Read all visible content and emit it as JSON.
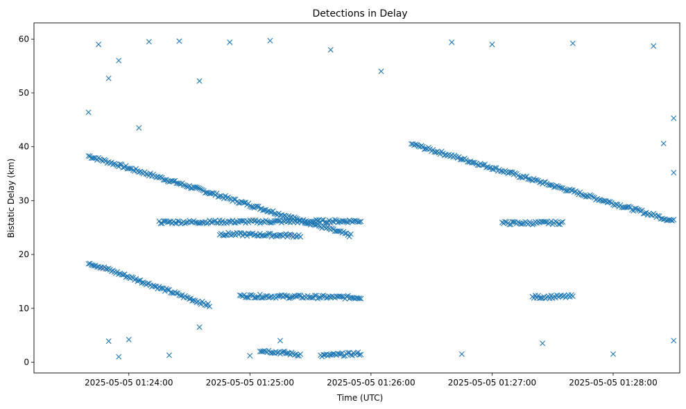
{
  "chart_data": {
    "type": "scatter",
    "title": "Detections in Delay",
    "xlabel": "Time (UTC)",
    "ylabel": "Bistatic Delay (km)",
    "marker": "x",
    "color": "#1f77b4",
    "x_unit": "time (UTC)",
    "xlim": [
      "2025-05-05 01:23:13",
      "2025-05-05 01:28:33"
    ],
    "ylim": [
      -2,
      63
    ],
    "xticks": [
      "2025-05-05 01:24:00",
      "2025-05-05 01:25:00",
      "2025-05-05 01:26:00",
      "2025-05-05 01:27:00",
      "2025-05-05 01:28:00"
    ],
    "yticks": [
      0,
      10,
      20,
      30,
      40,
      50,
      60
    ],
    "grid": false,
    "tracks": [
      {
        "from": [
          "2025-05-05 01:23:40",
          38.3
        ],
        "to": [
          "2025-05-05 01:25:50",
          23.5
        ]
      },
      {
        "from": [
          "2025-05-05 01:26:20",
          40.5
        ],
        "to": [
          "2025-05-05 01:28:30",
          26.2
        ]
      },
      {
        "from": [
          "2025-05-05 01:23:40",
          18.5
        ],
        "to": [
          "2025-05-05 01:24:40",
          10.5
        ]
      },
      {
        "from": [
          "2025-05-05 01:24:55",
          12.3
        ],
        "to": [
          "2025-05-05 01:25:55",
          12.0
        ]
      },
      {
        "from": [
          "2025-05-05 01:25:05",
          2.2
        ],
        "to": [
          "2025-05-05 01:25:25",
          1.4
        ]
      },
      {
        "from": [
          "2025-05-05 01:25:35",
          1.2
        ],
        "to": [
          "2025-05-05 01:25:55",
          1.6
        ]
      },
      {
        "from": [
          "2025-05-05 01:24:15",
          26.0
        ],
        "to": [
          "2025-05-05 01:25:55",
          26.2
        ]
      },
      {
        "from": [
          "2025-05-05 01:24:45",
          23.8
        ],
        "to": [
          "2025-05-05 01:25:25",
          23.5
        ]
      },
      {
        "from": [
          "2025-05-05 01:27:05",
          25.8
        ],
        "to": [
          "2025-05-05 01:27:35",
          25.9
        ]
      },
      {
        "from": [
          "2025-05-05 01:27:20",
          12.1
        ],
        "to": [
          "2025-05-05 01:27:40",
          12.2
        ]
      }
    ],
    "sample_points": [
      [
        "2025-05-05 01:23:40",
        46.4
      ],
      [
        "2025-05-05 01:23:45",
        59.0
      ],
      [
        "2025-05-05 01:23:50",
        52.7
      ],
      [
        "2025-05-05 01:23:55",
        56.0
      ],
      [
        "2025-05-05 01:24:05",
        43.5
      ],
      [
        "2025-05-05 01:24:10",
        59.5
      ],
      [
        "2025-05-05 01:24:25",
        59.6
      ],
      [
        "2025-05-05 01:24:35",
        52.2
      ],
      [
        "2025-05-05 01:24:50",
        59.4
      ],
      [
        "2025-05-05 01:25:10",
        59.7
      ],
      [
        "2025-05-05 01:25:40",
        58.0
      ],
      [
        "2025-05-05 01:26:05",
        54.0
      ],
      [
        "2025-05-05 01:26:40",
        59.4
      ],
      [
        "2025-05-05 01:27:00",
        59.0
      ],
      [
        "2025-05-05 01:27:40",
        59.2
      ],
      [
        "2025-05-05 01:28:20",
        58.7
      ],
      [
        "2025-05-05 01:23:50",
        3.9
      ],
      [
        "2025-05-05 01:23:55",
        1.0
      ],
      [
        "2025-05-05 01:24:00",
        4.2
      ],
      [
        "2025-05-05 01:24:20",
        1.3
      ],
      [
        "2025-05-05 01:24:35",
        6.5
      ],
      [
        "2025-05-05 01:25:00",
        1.2
      ],
      [
        "2025-05-05 01:25:15",
        4.0
      ],
      [
        "2025-05-05 01:26:45",
        1.5
      ],
      [
        "2025-05-05 01:27:25",
        3.5
      ],
      [
        "2025-05-05 01:28:00",
        1.5
      ],
      [
        "2025-05-05 01:28:30",
        4.0
      ],
      [
        "2025-05-05 01:28:30",
        45.3
      ],
      [
        "2025-05-05 01:28:25",
        40.6
      ],
      [
        "2025-05-05 01:28:30",
        35.2
      ]
    ]
  }
}
